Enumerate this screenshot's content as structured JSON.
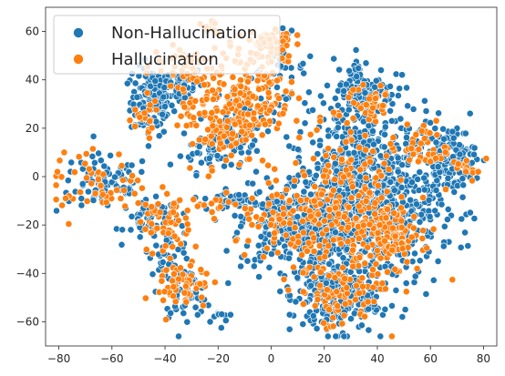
{
  "chart_data": {
    "type": "scatter",
    "title": "",
    "xlabel": "",
    "ylabel": "",
    "xlim": [
      -85,
      85
    ],
    "ylim": [
      -70,
      70
    ],
    "xticks": [
      -80,
      -60,
      -40,
      -20,
      0,
      20,
      40,
      60,
      80
    ],
    "yticks": [
      -60,
      -40,
      -20,
      0,
      20,
      40,
      60
    ],
    "grid": false,
    "legend_position": "top-left",
    "series": [
      {
        "name": "Non-Hallucination",
        "color": "#1f77b4",
        "clusters": [
          {
            "cx": -45,
            "cy": 31,
            "sx": 4,
            "sy": 7,
            "n": 130
          },
          {
            "cx": -35,
            "cy": 38,
            "sx": 5,
            "sy": 4,
            "n": 50
          },
          {
            "cx": -22,
            "cy": 12,
            "sx": 6,
            "sy": 5,
            "n": 60
          },
          {
            "cx": -12,
            "cy": 22,
            "sx": 5,
            "sy": 8,
            "n": 40
          },
          {
            "cx": 3,
            "cy": 45,
            "sx": 5,
            "sy": 7,
            "n": 40
          },
          {
            "cx": -63,
            "cy": -3,
            "sx": 9,
            "sy": 6,
            "n": 90
          },
          {
            "cx": -45,
            "cy": -18,
            "sx": 5,
            "sy": 4,
            "n": 50
          },
          {
            "cx": -38,
            "cy": -30,
            "sx": 4,
            "sy": 5,
            "n": 40
          },
          {
            "cx": -32,
            "cy": -48,
            "sx": 5,
            "sy": 5,
            "n": 60
          },
          {
            "cx": -20,
            "cy": -58,
            "sx": 2,
            "sy": 2,
            "n": 8
          },
          {
            "cx": -15,
            "cy": -11,
            "sx": 10,
            "sy": 2,
            "n": 30
          },
          {
            "cx": 8,
            "cy": -20,
            "sx": 10,
            "sy": 9,
            "n": 260
          },
          {
            "cx": 35,
            "cy": -10,
            "sx": 14,
            "sy": 18,
            "n": 900
          },
          {
            "cx": 35,
            "cy": 35,
            "sx": 6,
            "sy": 7,
            "n": 130
          },
          {
            "cx": 67,
            "cy": 7,
            "sx": 5,
            "sy": 7,
            "n": 140
          },
          {
            "cx": 23,
            "cy": -50,
            "sx": 8,
            "sy": 8,
            "n": 200
          }
        ],
        "note_points": [
          [
            -23,
            -60
          ],
          [
            -38,
            5
          ],
          [
            -17,
            -10
          ],
          [
            47,
            -47
          ]
        ]
      },
      {
        "name": "Hallucination",
        "color": "#ff7f0e",
        "clusters": [
          {
            "cx": -33,
            "cy": 46,
            "sx": 6,
            "sy": 4,
            "n": 40
          },
          {
            "cx": -48,
            "cy": 25,
            "sx": 3,
            "sy": 5,
            "n": 20
          },
          {
            "cx": -20,
            "cy": 27,
            "sx": 7,
            "sy": 12,
            "n": 160
          },
          {
            "cx": -5,
            "cy": 35,
            "sx": 6,
            "sy": 10,
            "n": 120
          },
          {
            "cx": 0,
            "cy": 55,
            "sx": 4,
            "sy": 4,
            "n": 50
          },
          {
            "cx": -22,
            "cy": 62,
            "sx": 2,
            "sy": 2,
            "n": 10
          },
          {
            "cx": -65,
            "cy": -3,
            "sx": 10,
            "sy": 7,
            "n": 50
          },
          {
            "cx": -40,
            "cy": -22,
            "sx": 5,
            "sy": 5,
            "n": 40
          },
          {
            "cx": -33,
            "cy": -45,
            "sx": 5,
            "sy": 6,
            "n": 60
          },
          {
            "cx": -25,
            "cy": -12,
            "sx": 10,
            "sy": 2,
            "n": 25
          },
          {
            "cx": 5,
            "cy": -20,
            "sx": 9,
            "sy": 7,
            "n": 70
          },
          {
            "cx": 30,
            "cy": -15,
            "sx": 12,
            "sy": 16,
            "n": 260
          },
          {
            "cx": 45,
            "cy": -25,
            "sx": 5,
            "sy": 6,
            "n": 80
          },
          {
            "cx": 25,
            "cy": -50,
            "sx": 8,
            "sy": 7,
            "n": 70
          },
          {
            "cx": 60,
            "cy": 12,
            "sx": 5,
            "sy": 5,
            "n": 40
          },
          {
            "cx": 75,
            "cy": 2,
            "sx": 2,
            "sy": 2,
            "n": 10
          },
          {
            "cx": 35,
            "cy": 30,
            "sx": 6,
            "sy": 6,
            "n": 40
          }
        ],
        "note_points": [
          [
            -78,
            10
          ],
          [
            -12,
            5
          ],
          [
            55,
            -38
          ],
          [
            78,
            2
          ]
        ]
      }
    ]
  }
}
